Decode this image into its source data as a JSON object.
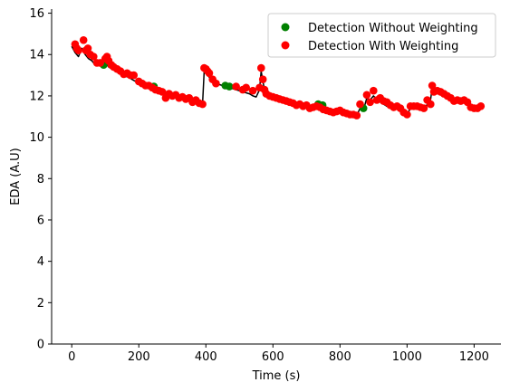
{
  "chart_data": {
    "type": "scatter",
    "xlabel": "Time (s)",
    "ylabel": "EDA (A.U)",
    "xlim": [
      -60,
      1280
    ],
    "ylim": [
      0,
      16.2
    ],
    "xticks": [
      0,
      200,
      400,
      600,
      800,
      1000,
      1200
    ],
    "yticks": [
      0,
      2,
      4,
      6,
      8,
      10,
      12,
      14,
      16
    ],
    "grid": false,
    "legend_position": "top-right",
    "signal": {
      "color": "#000000",
      "x": [
        0,
        10,
        20,
        30,
        40,
        50,
        60,
        70,
        80,
        90,
        100,
        110,
        120,
        130,
        140,
        150,
        160,
        170,
        180,
        190,
        200,
        210,
        220,
        230,
        240,
        250,
        260,
        270,
        280,
        290,
        300,
        310,
        320,
        330,
        340,
        350,
        360,
        370,
        380,
        390,
        395,
        400,
        405,
        410,
        420,
        430,
        440,
        450,
        460,
        470,
        480,
        490,
        500,
        510,
        520,
        530,
        540,
        550,
        560,
        565,
        570,
        575,
        580,
        590,
        600,
        610,
        620,
        630,
        640,
        650,
        660,
        670,
        680,
        690,
        700,
        710,
        720,
        730,
        740,
        750,
        760,
        770,
        780,
        790,
        800,
        810,
        820,
        830,
        840,
        850,
        860,
        870,
        880,
        890,
        900,
        910,
        920,
        930,
        940,
        950,
        960,
        970,
        980,
        990,
        1000,
        1010,
        1020,
        1030,
        1040,
        1050,
        1060,
        1070,
        1075,
        1080,
        1090,
        1100,
        1110,
        1120,
        1130,
        1140,
        1150,
        1160,
        1170,
        1180,
        1190,
        1200,
        1210,
        1220
      ],
      "y": [
        14.4,
        14.1,
        13.9,
        14.3,
        14.0,
        13.8,
        13.7,
        13.5,
        13.6,
        13.5,
        13.7,
        13.4,
        13.3,
        13.2,
        13.1,
        13.0,
        12.95,
        12.9,
        12.8,
        12.7,
        12.6,
        12.5,
        12.45,
        12.4,
        12.3,
        12.25,
        12.2,
        12.1,
        12.0,
        12.0,
        11.95,
        11.9,
        11.85,
        11.8,
        11.8,
        11.75,
        11.7,
        11.7,
        11.65,
        11.6,
        13.2,
        13.3,
        13.1,
        12.9,
        12.7,
        12.6,
        12.55,
        12.5,
        12.45,
        12.4,
        12.35,
        12.3,
        12.25,
        12.2,
        12.15,
        12.1,
        12.0,
        11.95,
        12.3,
        13.2,
        12.7,
        12.3,
        12.1,
        12.0,
        11.9,
        11.85,
        11.8,
        11.8,
        11.7,
        11.65,
        11.6,
        11.6,
        11.5,
        11.5,
        11.45,
        11.4,
        11.4,
        11.5,
        11.5,
        11.4,
        11.3,
        11.25,
        11.2,
        11.2,
        11.25,
        11.2,
        11.1,
        11.1,
        11.05,
        11.05,
        11.4,
        11.3,
        11.9,
        11.8,
        12.0,
        11.8,
        11.7,
        11.6,
        11.5,
        11.4,
        11.3,
        11.4,
        11.35,
        11.3,
        11.1,
        11.4,
        11.45,
        11.5,
        11.4,
        11.3,
        11.6,
        11.8,
        12.4,
        12.1,
        12.2,
        12.1,
        12.0,
        11.9,
        11.8,
        11.7,
        11.75,
        11.7,
        11.7,
        11.6,
        11.4,
        11.35,
        11.4,
        11.45
      ]
    },
    "series": [
      {
        "name": "Detection Without Weighting",
        "color": "#008000",
        "x": [
          95,
          245,
          458,
          470,
          735,
          748,
          870
        ],
        "y": [
          13.5,
          12.45,
          12.5,
          12.45,
          11.6,
          11.55,
          11.4
        ]
      },
      {
        "name": "Detection With Weighting",
        "color": "#ff0000",
        "x": [
          10,
          15,
          20,
          35,
          42,
          48,
          55,
          65,
          75,
          85,
          100,
          105,
          110,
          118,
          125,
          135,
          145,
          155,
          165,
          175,
          185,
          200,
          210,
          220,
          230,
          240,
          250,
          260,
          270,
          280,
          290,
          300,
          310,
          320,
          330,
          340,
          350,
          360,
          370,
          380,
          390,
          395,
          400,
          405,
          410,
          420,
          430,
          490,
          510,
          520,
          540,
          560,
          565,
          570,
          575,
          580,
          590,
          600,
          610,
          620,
          630,
          640,
          650,
          660,
          670,
          680,
          690,
          700,
          710,
          720,
          730,
          740,
          750,
          760,
          770,
          780,
          790,
          800,
          810,
          820,
          830,
          840,
          850,
          860,
          880,
          890,
          900,
          910,
          920,
          930,
          940,
          950,
          960,
          970,
          980,
          990,
          1000,
          1010,
          1020,
          1030,
          1040,
          1050,
          1060,
          1070,
          1075,
          1080,
          1090,
          1100,
          1110,
          1120,
          1130,
          1140,
          1150,
          1160,
          1170,
          1180,
          1190,
          1200,
          1210,
          1220
        ],
        "y": [
          14.5,
          14.3,
          14.2,
          14.7,
          14.2,
          14.3,
          14.0,
          13.9,
          13.6,
          13.6,
          13.8,
          13.9,
          13.7,
          13.5,
          13.4,
          13.3,
          13.2,
          13.05,
          13.1,
          13.0,
          13.0,
          12.7,
          12.6,
          12.5,
          12.5,
          12.4,
          12.3,
          12.25,
          12.2,
          11.9,
          12.1,
          12.0,
          12.05,
          11.9,
          11.95,
          11.85,
          11.9,
          11.7,
          11.8,
          11.65,
          11.6,
          13.35,
          13.3,
          13.2,
          13.1,
          12.8,
          12.6,
          12.45,
          12.3,
          12.4,
          12.25,
          12.4,
          13.35,
          12.8,
          12.3,
          12.1,
          12.0,
          11.95,
          11.9,
          11.85,
          11.8,
          11.75,
          11.7,
          11.65,
          11.55,
          11.6,
          11.5,
          11.55,
          11.4,
          11.45,
          11.5,
          11.45,
          11.35,
          11.3,
          11.25,
          11.2,
          11.25,
          11.3,
          11.2,
          11.15,
          11.1,
          11.1,
          11.05,
          11.6,
          12.05,
          11.7,
          12.25,
          11.8,
          11.9,
          11.75,
          11.7,
          11.55,
          11.45,
          11.5,
          11.4,
          11.2,
          11.1,
          11.5,
          11.5,
          11.5,
          11.45,
          11.4,
          11.8,
          11.6,
          12.5,
          12.2,
          12.25,
          12.2,
          12.1,
          12.0,
          11.9,
          11.75,
          11.8,
          11.75,
          11.8,
          11.7,
          11.45,
          11.4,
          11.4,
          11.5
        ]
      }
    ]
  }
}
